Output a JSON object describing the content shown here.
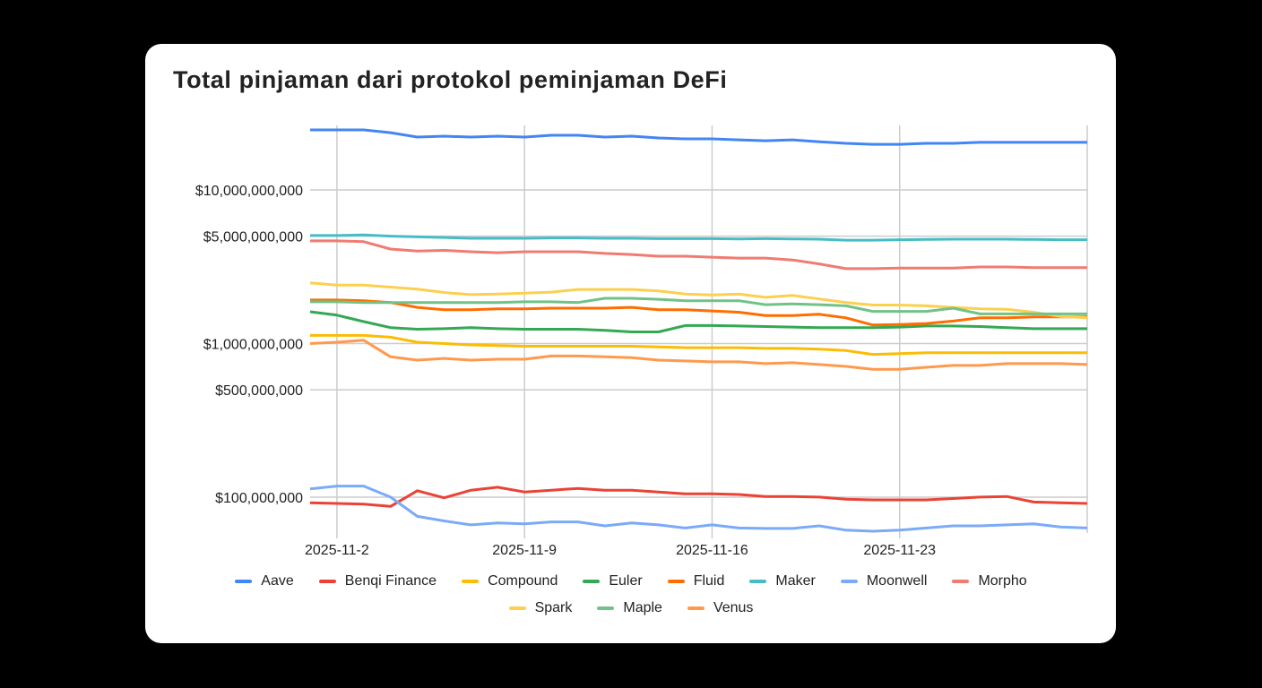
{
  "chart_data": {
    "type": "line",
    "title": "Total pinjaman dari protokol peminjaman DeFi",
    "xlabel": "",
    "ylabel": "",
    "yscale": "log",
    "ylim": [
      58400000.0,
      26300000000.0
    ],
    "grid": true,
    "legend_position": "bottom",
    "x": [
      "2025-11-1",
      "2025-11-2",
      "2025-11-3",
      "2025-11-4",
      "2025-11-5",
      "2025-11-6",
      "2025-11-7",
      "2025-11-8",
      "2025-11-9",
      "2025-11-10",
      "2025-11-11",
      "2025-11-12",
      "2025-11-13",
      "2025-11-14",
      "2025-11-15",
      "2025-11-16",
      "2025-11-17",
      "2025-11-18",
      "2025-11-19",
      "2025-11-20",
      "2025-11-21",
      "2025-11-22",
      "2025-11-23",
      "2025-11-24",
      "2025-11-25",
      "2025-11-26",
      "2025-11-27",
      "2025-11-28",
      "2025-11-29",
      "2025-11-30"
    ],
    "x_tick_labels": [
      "2025-11-2",
      "2025-11-9",
      "2025-11-16",
      "2025-11-23"
    ],
    "x_tick_indices": [
      1,
      8,
      15,
      22
    ],
    "y_ticks": [
      100000000.0,
      500000000.0,
      1000000000.0,
      5000000000.0,
      10000000000.0
    ],
    "y_tick_labels": [
      "$100,000,000",
      "$500,000,000",
      "$1,000,000,000",
      "$5,000,000,000",
      "$10,000,000,000"
    ],
    "series": [
      {
        "name": "Aave",
        "color": "#4285F4",
        "values": [
          24600000000.0,
          24600000000.0,
          24600000000.0,
          23600000000.0,
          22100000000.0,
          22400000000.0,
          22100000000.0,
          22400000000.0,
          22100000000.0,
          22700000000.0,
          22700000000.0,
          22100000000.0,
          22400000000.0,
          21800000000.0,
          21500000000.0,
          21500000000.0,
          21200000000.0,
          20900000000.0,
          21200000000.0,
          20600000000.0,
          20100000000.0,
          19800000000.0,
          19800000000.0,
          20100000000.0,
          20100000000.0,
          20400000000.0,
          20400000000.0,
          20400000000.0,
          20400000000.0,
          20400000000.0
        ]
      },
      {
        "name": "Benqi Finance",
        "color": "#EA4335",
        "values": [
          92000000.0,
          91000000.0,
          90000000.0,
          87000000.0,
          110000000.0,
          99000000.0,
          111000000.0,
          116000000.0,
          108000000.0,
          111000000.0,
          114000000.0,
          111000000.0,
          111000000.0,
          108000000.0,
          105000000.0,
          105000000.0,
          104000000.0,
          101000000.0,
          101000000.0,
          100000000.0,
          97000000.0,
          96000000.0,
          96000000.0,
          96000000.0,
          98000000.0,
          100000000.0,
          101000000.0,
          93000000.0,
          92000000.0,
          91000000.0
        ]
      },
      {
        "name": "Compound",
        "color": "#FBBC04",
        "values": [
          1130000000.0,
          1130000000.0,
          1130000000.0,
          1100000000.0,
          1020000000.0,
          1000000000.0,
          980000000.0,
          970000000.0,
          960000000.0,
          960000000.0,
          960000000.0,
          960000000.0,
          960000000.0,
          950000000.0,
          940000000.0,
          940000000.0,
          940000000.0,
          930000000.0,
          930000000.0,
          920000000.0,
          900000000.0,
          850000000.0,
          860000000.0,
          870000000.0,
          870000000.0,
          870000000.0,
          870000000.0,
          870000000.0,
          870000000.0,
          870000000.0
        ]
      },
      {
        "name": "Euler",
        "color": "#34A853",
        "values": [
          1610000000.0,
          1530000000.0,
          1390000000.0,
          1270000000.0,
          1240000000.0,
          1250000000.0,
          1270000000.0,
          1250000000.0,
          1240000000.0,
          1240000000.0,
          1240000000.0,
          1220000000.0,
          1190000000.0,
          1190000000.0,
          1310000000.0,
          1310000000.0,
          1300000000.0,
          1290000000.0,
          1280000000.0,
          1270000000.0,
          1270000000.0,
          1270000000.0,
          1280000000.0,
          1300000000.0,
          1300000000.0,
          1290000000.0,
          1270000000.0,
          1250000000.0,
          1250000000.0,
          1250000000.0
        ]
      },
      {
        "name": "Fluid",
        "color": "#FF6D01",
        "values": [
          1920000000.0,
          1920000000.0,
          1900000000.0,
          1850000000.0,
          1720000000.0,
          1660000000.0,
          1660000000.0,
          1680000000.0,
          1680000000.0,
          1700000000.0,
          1700000000.0,
          1700000000.0,
          1720000000.0,
          1660000000.0,
          1660000000.0,
          1630000000.0,
          1600000000.0,
          1520000000.0,
          1520000000.0,
          1550000000.0,
          1470000000.0,
          1320000000.0,
          1330000000.0,
          1350000000.0,
          1400000000.0,
          1470000000.0,
          1470000000.0,
          1490000000.0,
          1490000000.0,
          1490000000.0
        ]
      },
      {
        "name": "Maker",
        "color": "#46BDC6",
        "values": [
          5050000000.0,
          5050000000.0,
          5100000000.0,
          5000000000.0,
          4950000000.0,
          4900000000.0,
          4840000000.0,
          4840000000.0,
          4840000000.0,
          4870000000.0,
          4870000000.0,
          4840000000.0,
          4840000000.0,
          4820000000.0,
          4820000000.0,
          4820000000.0,
          4800000000.0,
          4820000000.0,
          4800000000.0,
          4780000000.0,
          4710000000.0,
          4710000000.0,
          4740000000.0,
          4760000000.0,
          4780000000.0,
          4780000000.0,
          4780000000.0,
          4760000000.0,
          4740000000.0,
          4740000000.0
        ]
      },
      {
        "name": "Moonwell",
        "color": "#7BAAF7",
        "values": [
          113000000.0,
          118000000.0,
          118000000.0,
          100000000.0,
          75000000.0,
          70000000.0,
          66000000.0,
          68000000.0,
          67000000.0,
          69000000.0,
          69000000.0,
          65000000.0,
          68000000.0,
          66000000.0,
          63000000.0,
          66000000.0,
          63000000.0,
          62500000.0,
          62500000.0,
          65000000.0,
          61000000.0,
          60000000.0,
          61000000.0,
          63000000.0,
          65000000.0,
          65000000.0,
          66000000.0,
          67000000.0,
          64000000.0,
          63000000.0
        ]
      },
      {
        "name": "Morpho",
        "color": "#F07B72",
        "values": [
          4660000000.0,
          4660000000.0,
          4600000000.0,
          4120000000.0,
          4000000000.0,
          4040000000.0,
          3960000000.0,
          3900000000.0,
          3960000000.0,
          3960000000.0,
          3960000000.0,
          3860000000.0,
          3800000000.0,
          3700000000.0,
          3700000000.0,
          3650000000.0,
          3600000000.0,
          3600000000.0,
          3500000000.0,
          3300000000.0,
          3070000000.0,
          3070000000.0,
          3100000000.0,
          3100000000.0,
          3100000000.0,
          3150000000.0,
          3150000000.0,
          3120000000.0,
          3120000000.0,
          3120000000.0
        ]
      },
      {
        "name": "Spark",
        "color": "#FCD04F",
        "values": [
          2480000000.0,
          2400000000.0,
          2400000000.0,
          2330000000.0,
          2260000000.0,
          2150000000.0,
          2080000000.0,
          2100000000.0,
          2130000000.0,
          2160000000.0,
          2250000000.0,
          2250000000.0,
          2250000000.0,
          2200000000.0,
          2100000000.0,
          2070000000.0,
          2100000000.0,
          2000000000.0,
          2060000000.0,
          1950000000.0,
          1850000000.0,
          1780000000.0,
          1780000000.0,
          1760000000.0,
          1720000000.0,
          1680000000.0,
          1670000000.0,
          1600000000.0,
          1500000000.0,
          1470000000.0
        ]
      },
      {
        "name": "Maple",
        "color": "#71C287",
        "values": [
          1870000000.0,
          1870000000.0,
          1850000000.0,
          1850000000.0,
          1850000000.0,
          1850000000.0,
          1850000000.0,
          1850000000.0,
          1870000000.0,
          1870000000.0,
          1850000000.0,
          1970000000.0,
          1970000000.0,
          1940000000.0,
          1900000000.0,
          1900000000.0,
          1900000000.0,
          1790000000.0,
          1810000000.0,
          1790000000.0,
          1760000000.0,
          1620000000.0,
          1620000000.0,
          1620000000.0,
          1700000000.0,
          1560000000.0,
          1560000000.0,
          1560000000.0,
          1560000000.0,
          1560000000.0
        ]
      },
      {
        "name": "Venus",
        "color": "#FF994D",
        "values": [
          1000000000.0,
          1020000000.0,
          1050000000.0,
          820000000.0,
          780000000.0,
          800000000.0,
          780000000.0,
          790000000.0,
          790000000.0,
          830000000.0,
          830000000.0,
          820000000.0,
          810000000.0,
          780000000.0,
          770000000.0,
          760000000.0,
          760000000.0,
          740000000.0,
          750000000.0,
          730000000.0,
          710000000.0,
          680000000.0,
          680000000.0,
          700000000.0,
          720000000.0,
          720000000.0,
          740000000.0,
          740000000.0,
          740000000.0,
          730000000.0
        ]
      }
    ]
  }
}
